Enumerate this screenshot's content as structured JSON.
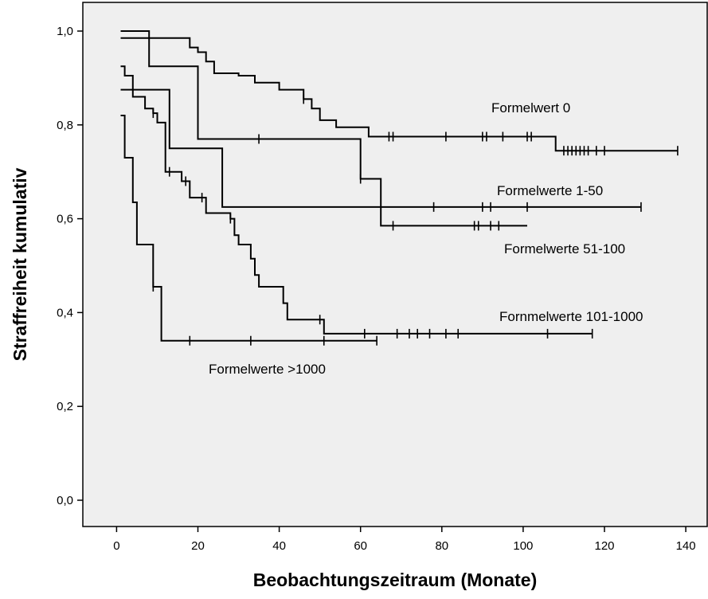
{
  "chart_data": {
    "type": "line",
    "subtype": "kaplan-meier step curves",
    "xlabel": "Beobachtungszeitraum (Monate)",
    "ylabel": "Straffreiheit kumulativ",
    "xlim": [
      0,
      145
    ],
    "ylim": [
      0,
      1.0
    ],
    "x_ticks": [
      0,
      20,
      40,
      60,
      80,
      100,
      120,
      140
    ],
    "y_ticks": [
      0.0,
      0.2,
      0.4,
      0.6,
      0.8,
      1.0
    ],
    "x_tick_labels": [
      "0",
      "20",
      "40",
      "60",
      "80",
      "100",
      "120",
      "140"
    ],
    "y_tick_labels": [
      "0,0",
      "0,2",
      "0,4",
      "0,6",
      "0,8",
      "1,0"
    ],
    "plot_background": "#efefef",
    "line_color": "#000000",
    "grid": false,
    "legend": "none (labels placed next to curves)",
    "series": [
      {
        "name": "Formelwert 0",
        "steps": [
          [
            1,
            0.985
          ],
          [
            12,
            0.985
          ],
          [
            18,
            0.965
          ],
          [
            20,
            0.955
          ],
          [
            22,
            0.935
          ],
          [
            24,
            0.91
          ],
          [
            30,
            0.905
          ],
          [
            34,
            0.89
          ],
          [
            40,
            0.875
          ],
          [
            46,
            0.855
          ],
          [
            48,
            0.835
          ],
          [
            50,
            0.81
          ],
          [
            54,
            0.795
          ],
          [
            62,
            0.775
          ],
          [
            107,
            0.775
          ],
          [
            108,
            0.745
          ],
          [
            138,
            0.745
          ]
        ],
        "censored_x": [
          46,
          67,
          68,
          81,
          90,
          91,
          95,
          101,
          102,
          110,
          111,
          112,
          113,
          114,
          115,
          116,
          118,
          120,
          138
        ]
      },
      {
        "name": "Formelwerte 1-50",
        "steps": [
          [
            1,
            1.0
          ],
          [
            8,
            1.0
          ],
          [
            8,
            0.925
          ],
          [
            18,
            0.925
          ],
          [
            20,
            0.86
          ],
          [
            20,
            0.77
          ],
          [
            60,
            0.77
          ],
          [
            60,
            0.685
          ],
          [
            65,
            0.685
          ],
          [
            65,
            0.585
          ],
          [
            101,
            0.585
          ]
        ],
        "censored_x": [
          35,
          60,
          68,
          88,
          89,
          92,
          94
        ]
      },
      {
        "name": "Formelwerte 51-100",
        "steps": [
          [
            1,
            0.875
          ],
          [
            13,
            0.875
          ],
          [
            13,
            0.75
          ],
          [
            26,
            0.75
          ],
          [
            26,
            0.625
          ],
          [
            129,
            0.625
          ]
        ],
        "censored_x": [
          78,
          90,
          92,
          101,
          129
        ]
      },
      {
        "name": "Fornmelwerte 101-1000",
        "steps": [
          [
            1,
            0.925
          ],
          [
            2,
            0.905
          ],
          [
            4,
            0.86
          ],
          [
            7,
            0.835
          ],
          [
            9,
            0.825
          ],
          [
            10,
            0.805
          ],
          [
            12,
            0.805
          ],
          [
            12,
            0.7
          ],
          [
            16,
            0.7
          ],
          [
            16,
            0.68
          ],
          [
            18,
            0.665
          ],
          [
            18,
            0.645
          ],
          [
            22,
            0.625
          ],
          [
            22,
            0.612
          ],
          [
            28,
            0.612
          ],
          [
            28,
            0.6
          ],
          [
            29,
            0.565
          ],
          [
            30,
            0.545
          ],
          [
            33,
            0.515
          ],
          [
            34,
            0.48
          ],
          [
            35,
            0.455
          ],
          [
            40,
            0.455
          ],
          [
            41,
            0.42
          ],
          [
            42,
            0.385
          ],
          [
            50,
            0.385
          ],
          [
            51,
            0.355
          ],
          [
            117,
            0.355
          ]
        ],
        "censored_x": [
          9,
          13,
          17,
          21,
          28,
          50,
          61,
          69,
          72,
          74,
          77,
          81,
          84,
          106,
          117
        ]
      },
      {
        "name": "Formelwerte >1000",
        "steps": [
          [
            1,
            0.82
          ],
          [
            2,
            0.73
          ],
          [
            4,
            0.635
          ],
          [
            5,
            0.545
          ],
          [
            9,
            0.545
          ],
          [
            9,
            0.455
          ],
          [
            11,
            0.455
          ],
          [
            11,
            0.34
          ],
          [
            64,
            0.34
          ]
        ],
        "censored_x": [
          9,
          18,
          33,
          51,
          64
        ]
      }
    ]
  },
  "labels": {
    "s0": "Formelwert 0",
    "s1": "Formelwerte 1-50",
    "s2": "Formelwerte 51-100",
    "s3": "Fornmelwerte 101-1000",
    "s4": "Formelwerte >1000"
  }
}
